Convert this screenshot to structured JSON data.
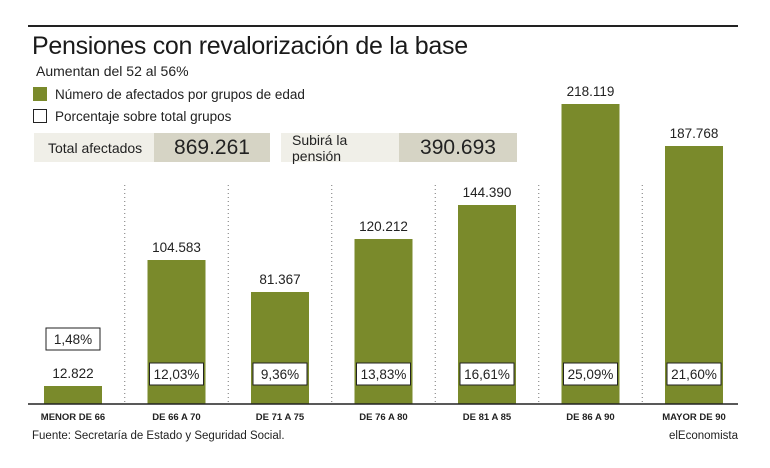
{
  "title": "Pensiones con revalorización de la base",
  "subtitle": "Aumentan del 52 al 56%",
  "legend": [
    {
      "label": "Número de afectados por grupos de edad",
      "swatch": "fill"
    },
    {
      "label": "Porcentaje sobre total grupos",
      "swatch": "outline"
    }
  ],
  "stats": [
    {
      "label": "Total afectados",
      "value": "869.261"
    },
    {
      "label": "Subirá la pensión",
      "value": "390.693"
    }
  ],
  "colors": {
    "bar": "#7a8a2b",
    "stat_label_bg": "#f0efe8",
    "stat_value_bg": "#d6d4c5"
  },
  "chart_data": {
    "type": "bar",
    "categories": [
      "MENOR DE 66",
      "DE 66 A 70",
      "DE 71 A 75",
      "DE 76 A 80",
      "DE 81 A 85",
      "DE 86 A 90",
      "MAYOR DE 90"
    ],
    "values": [
      12822,
      104583,
      81367,
      120212,
      144390,
      218119,
      187768
    ],
    "value_labels": [
      "12.822",
      "104.583",
      "81.367",
      "120.212",
      "144.390",
      "218.119",
      "187.768"
    ],
    "percent_labels": [
      "1,48%",
      "12,03%",
      "9,36%",
      "13,83%",
      "16,61%",
      "25,09%",
      "21,60%"
    ],
    "ylim": [
      0,
      218119
    ],
    "grid": false,
    "title": "Pensiones con revalorización de la base",
    "xlabel": "",
    "ylabel": ""
  },
  "footer": {
    "source": "Fuente: Secretaría de Estado y Seguridad Social.",
    "credit": "elEconomista"
  }
}
